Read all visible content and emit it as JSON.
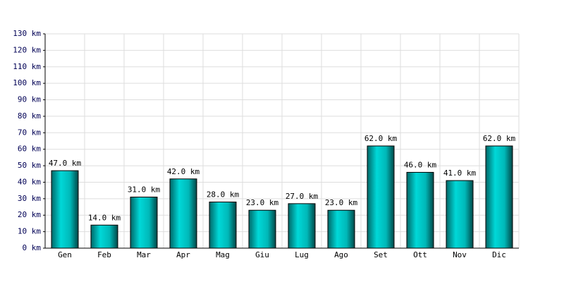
{
  "chart_data": {
    "type": "bar",
    "categories": [
      "Gen",
      "Feb",
      "Mar",
      "Apr",
      "Mag",
      "Giu",
      "Lug",
      "Ago",
      "Set",
      "Ott",
      "Nov",
      "Dic"
    ],
    "values": [
      47,
      14,
      31,
      42,
      28,
      23,
      27,
      23,
      62,
      46,
      41,
      62
    ],
    "value_labels": [
      "47.0 km",
      "14.0 km",
      "31.0 km",
      "42.0 km",
      "28.0 km",
      "23.0 km",
      "27.0 km",
      "23.0 km",
      "62.0 km",
      "46.0 km",
      "41.0 km",
      "62.0 km"
    ],
    "color": "#00d8d8",
    "ylim": [
      0,
      130
    ],
    "yticks": [
      {
        "value": 0,
        "label": "0 km"
      },
      {
        "value": 10,
        "label": "10 km"
      },
      {
        "value": 20,
        "label": "20 km"
      },
      {
        "value": 30,
        "label": "30 km"
      },
      {
        "value": 40,
        "label": "40 km"
      },
      {
        "value": 50,
        "label": "50 km"
      },
      {
        "value": 60,
        "label": "60 km"
      },
      {
        "value": 70,
        "label": "70 km"
      },
      {
        "value": 80,
        "label": "80 km"
      },
      {
        "value": 90,
        "label": "90 km"
      },
      {
        "value": 100,
        "label": "100 km"
      },
      {
        "value": 110,
        "label": "110 km"
      },
      {
        "value": 120,
        "label": "120 km"
      },
      {
        "value": 130,
        "label": "130 km"
      }
    ],
    "grid": true
  }
}
